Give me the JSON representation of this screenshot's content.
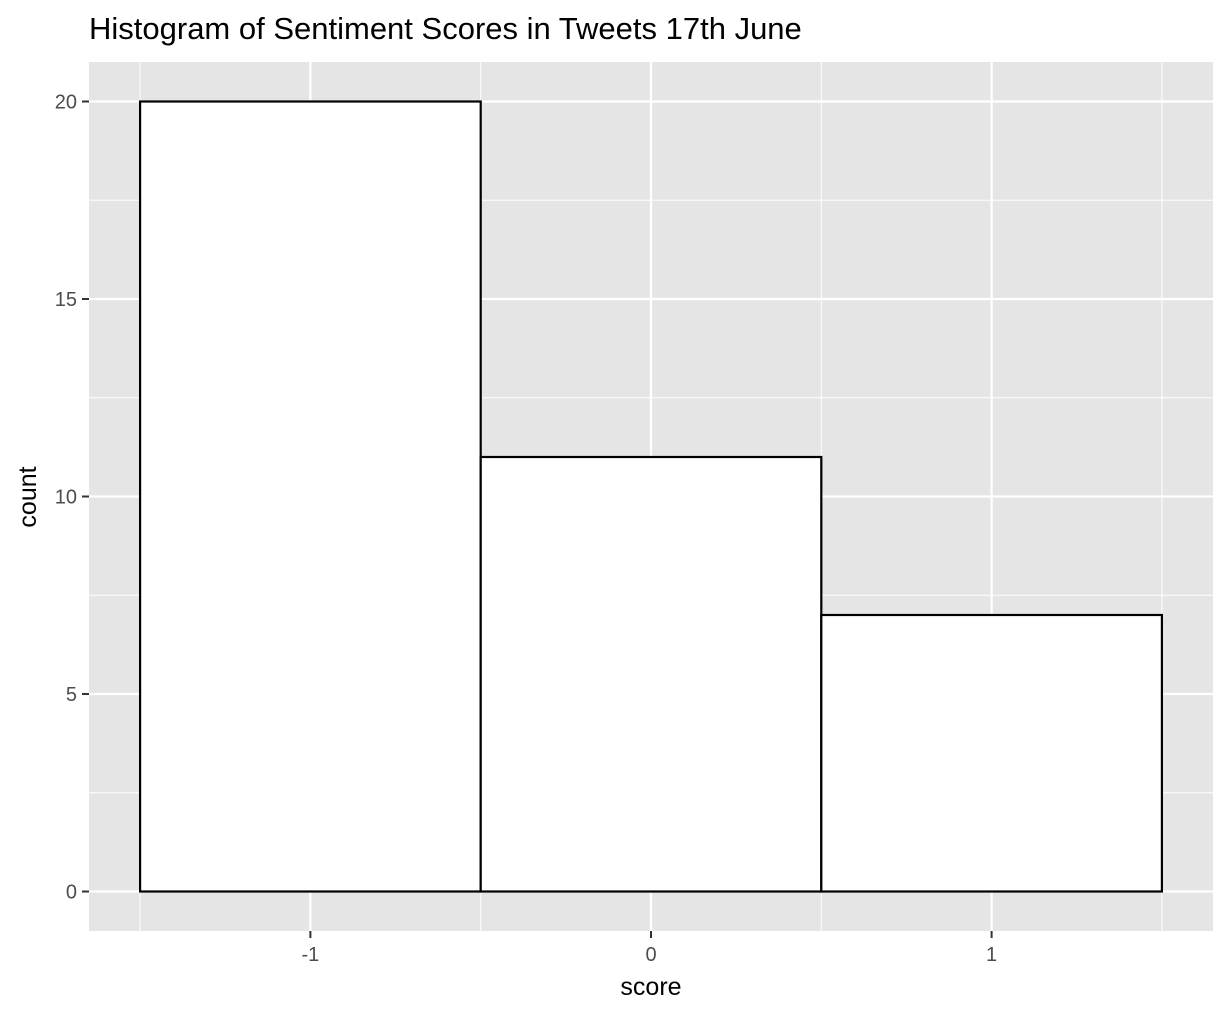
{
  "chart_data": {
    "type": "bar",
    "title": "Histogram of Sentiment Scores in Tweets 17th June",
    "xlabel": "score",
    "ylabel": "count",
    "categories": [
      "-1",
      "0",
      "1"
    ],
    "x": [
      -1,
      0,
      1
    ],
    "values": [
      20,
      11,
      7
    ],
    "bin_width": 1,
    "xlim": [
      -1.65,
      1.65
    ],
    "ylim": [
      -1,
      21
    ],
    "x_ticks": [
      -1,
      0,
      1
    ],
    "y_ticks": [
      0,
      5,
      10,
      15,
      20
    ],
    "y_minor_ticks": [
      2.5,
      7.5,
      12.5,
      17.5
    ],
    "grid": true,
    "legend": "none",
    "colors": {
      "panel_background": "#e5e5e5",
      "grid": "#ffffff",
      "bar_fill": "#ffffff",
      "bar_outline": "#000000",
      "tick_text": "#4d4d4d",
      "tick_mark": "#333333"
    }
  }
}
